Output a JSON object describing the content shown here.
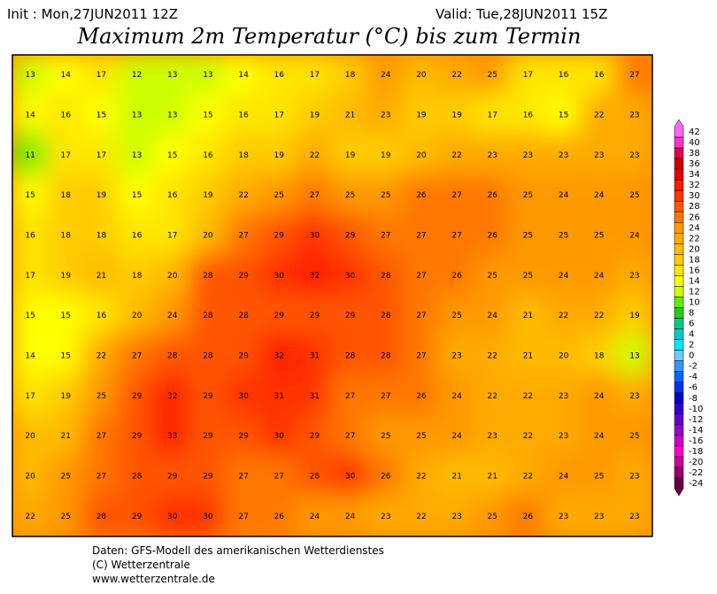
{
  "header": {
    "init": "Init : Mon,27JUN2011 12Z",
    "valid": "Valid: Tue,28JUN2011 15Z",
    "title": "Maximum 2m Temperatur (°C) bis zum Termin"
  },
  "map": {
    "grid": [
      [
        13,
        14,
        17,
        12,
        13,
        13,
        14,
        16,
        17,
        18,
        24,
        20,
        22,
        25,
        17,
        16,
        16,
        27
      ],
      [
        14,
        16,
        15,
        13,
        13,
        15,
        16,
        17,
        19,
        21,
        23,
        19,
        19,
        17,
        16,
        15,
        22,
        23
      ],
      [
        11,
        17,
        17,
        13,
        15,
        16,
        18,
        19,
        22,
        19,
        19,
        20,
        22,
        23,
        23,
        23,
        23,
        23
      ],
      [
        15,
        18,
        19,
        15,
        16,
        19,
        22,
        25,
        27,
        25,
        25,
        26,
        27,
        26,
        25,
        24,
        24,
        25
      ],
      [
        16,
        18,
        18,
        16,
        17,
        20,
        27,
        29,
        30,
        29,
        27,
        27,
        27,
        26,
        25,
        25,
        25,
        24
      ],
      [
        17,
        19,
        21,
        18,
        20,
        28,
        29,
        30,
        32,
        30,
        28,
        27,
        26,
        25,
        25,
        24,
        24,
        23
      ],
      [
        15,
        15,
        16,
        20,
        24,
        28,
        28,
        29,
        29,
        29,
        28,
        27,
        25,
        24,
        21,
        22,
        22,
        19
      ],
      [
        14,
        15,
        22,
        27,
        28,
        28,
        29,
        32,
        31,
        28,
        28,
        27,
        23,
        22,
        21,
        20,
        18,
        13
      ],
      [
        17,
        19,
        25,
        29,
        32,
        29,
        30,
        31,
        31,
        27,
        27,
        26,
        24,
        22,
        22,
        23,
        24,
        23
      ],
      [
        20,
        21,
        27,
        29,
        33,
        29,
        29,
        30,
        29,
        27,
        25,
        25,
        24,
        23,
        22,
        23,
        24,
        25
      ],
      [
        20,
        25,
        27,
        28,
        29,
        29,
        27,
        27,
        28,
        30,
        26,
        22,
        21,
        21,
        22,
        24,
        25,
        23
      ],
      [
        22,
        25,
        28,
        29,
        30,
        30,
        27,
        26,
        24,
        24,
        23,
        22,
        23,
        25,
        26,
        23,
        23,
        23
      ]
    ]
  },
  "colorbar": {
    "levels": [
      {
        "value": 42,
        "color": "#ff66ff"
      },
      {
        "value": 40,
        "color": "#ff33cc"
      },
      {
        "value": 38,
        "color": "#e6004c"
      },
      {
        "value": 36,
        "color": "#cc0000"
      },
      {
        "value": 34,
        "color": "#e60000"
      },
      {
        "value": 32,
        "color": "#ff1a00"
      },
      {
        "value": 30,
        "color": "#ff3300"
      },
      {
        "value": 28,
        "color": "#ff5500"
      },
      {
        "value": 26,
        "color": "#ff7700"
      },
      {
        "value": 24,
        "color": "#ff9900"
      },
      {
        "value": 22,
        "color": "#ffaa00"
      },
      {
        "value": 20,
        "color": "#ffbb00"
      },
      {
        "value": 18,
        "color": "#ffcc00"
      },
      {
        "value": 16,
        "color": "#ffe600"
      },
      {
        "value": 14,
        "color": "#ffff00"
      },
      {
        "value": 12,
        "color": "#ccff00"
      },
      {
        "value": 10,
        "color": "#66ee00"
      },
      {
        "value": 8,
        "color": "#22cc22"
      },
      {
        "value": 6,
        "color": "#00cc88"
      },
      {
        "value": 4,
        "color": "#00cccc"
      },
      {
        "value": 2,
        "color": "#00e6ff"
      },
      {
        "value": 0,
        "color": "#66ccff"
      },
      {
        "value": -2,
        "color": "#3399ff"
      },
      {
        "value": -4,
        "color": "#0066ff"
      },
      {
        "value": -6,
        "color": "#0033ee"
      },
      {
        "value": -8,
        "color": "#0000cc"
      },
      {
        "value": -10,
        "color": "#3300cc"
      },
      {
        "value": -12,
        "color": "#6600cc"
      },
      {
        "value": -14,
        "color": "#9900cc"
      },
      {
        "value": -16,
        "color": "#cc00cc"
      },
      {
        "value": -18,
        "color": "#ff00cc"
      },
      {
        "value": -20,
        "color": "#cc0099"
      },
      {
        "value": -22,
        "color": "#990066"
      },
      {
        "value": -24,
        "color": "#660044"
      }
    ]
  },
  "footer": {
    "lines": [
      "Daten: GFS-Modell des amerikanischen Wetterdienstes",
      "(C) Wetterzentrale",
      "www.wetterzentrale.de"
    ]
  }
}
